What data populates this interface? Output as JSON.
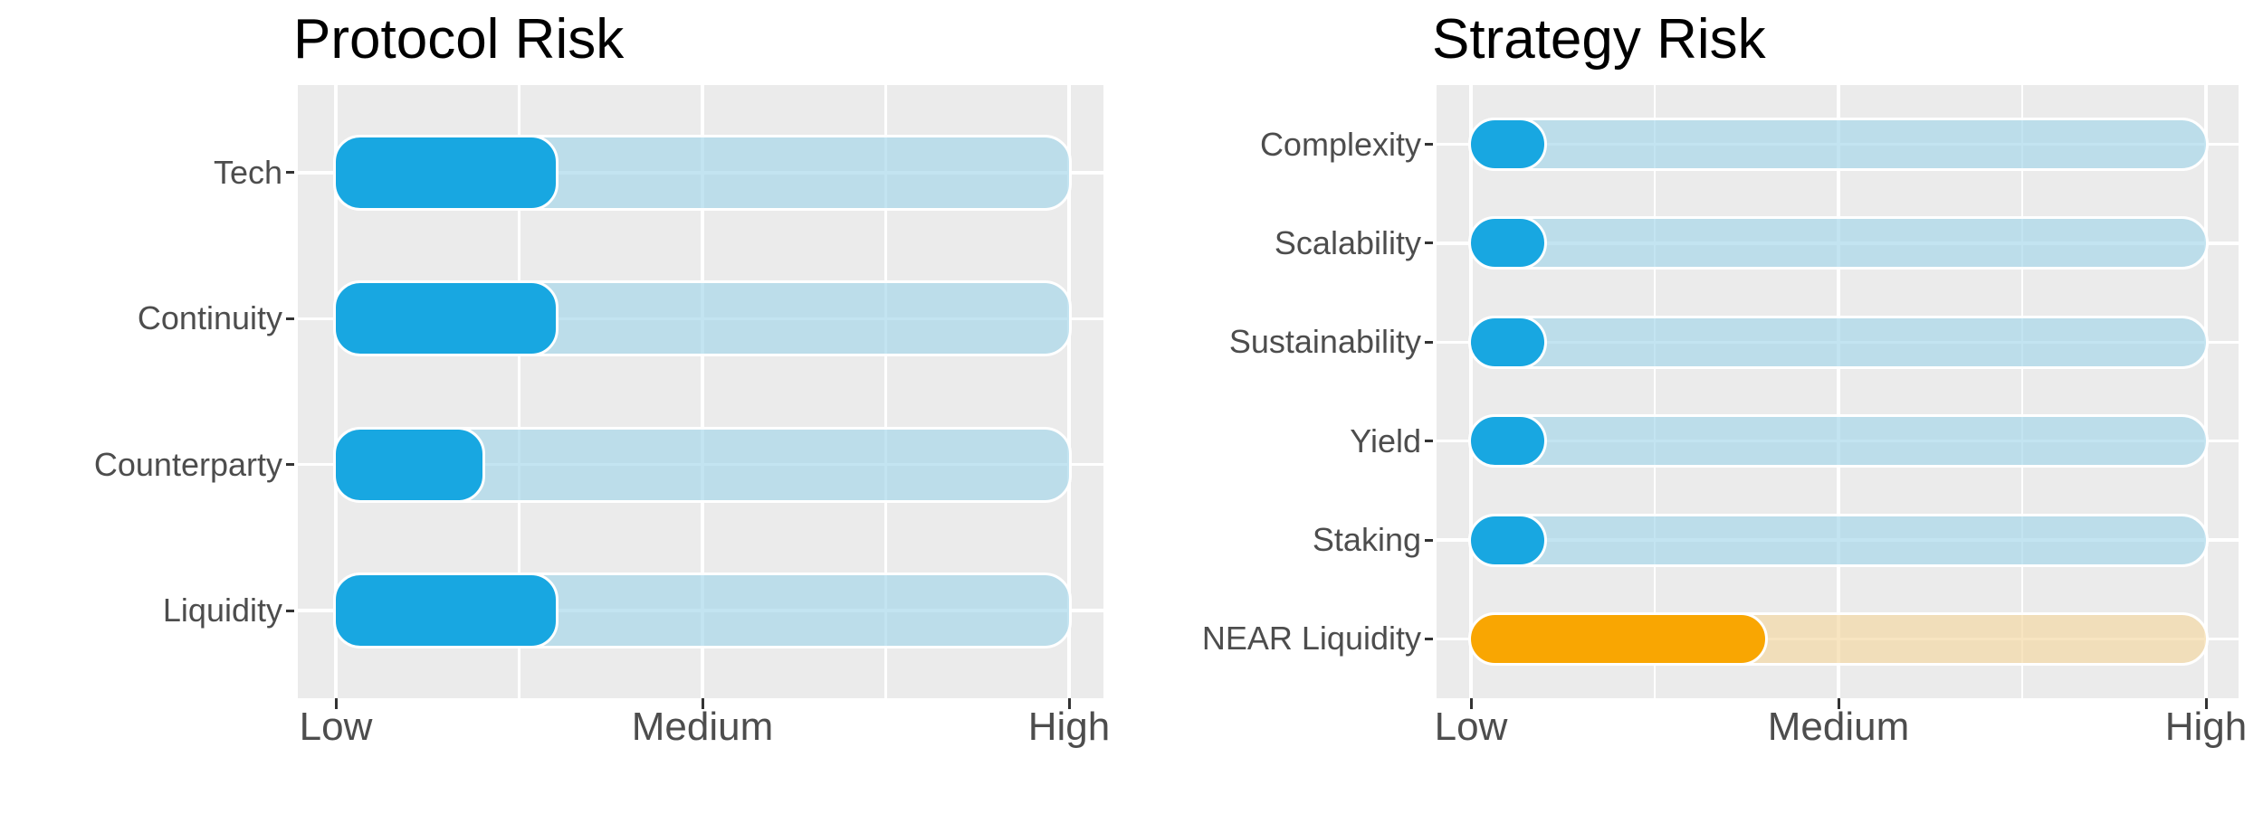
{
  "chart_data": [
    {
      "type": "bar",
      "orientation": "horizontal",
      "title": "Protocol Risk",
      "categories": [
        "Tech",
        "Continuity",
        "Counterparty",
        "Liquidity"
      ],
      "values": [
        3,
        3,
        2,
        3
      ],
      "track_max": 10,
      "xlim": [
        0,
        10
      ],
      "x_ticks": [
        {
          "label": "Low",
          "value": 0
        },
        {
          "label": "Medium",
          "value": 5
        },
        {
          "label": "High",
          "value": 10
        }
      ],
      "grid": true,
      "legend": false,
      "bar_colors": [
        "#18a7e1",
        "#18a7e1",
        "#18a7e1",
        "#18a7e1"
      ],
      "track_colors": [
        "rgba(163,214,233,0.65)",
        "rgba(163,214,233,0.65)",
        "rgba(163,214,233,0.65)",
        "rgba(163,214,233,0.65)"
      ]
    },
    {
      "type": "bar",
      "orientation": "horizontal",
      "title": "Strategy Risk",
      "categories": [
        "Complexity",
        "Scalability",
        "Sustainability",
        "Yield",
        "Staking",
        "NEAR Liquidity"
      ],
      "values": [
        1,
        1,
        1,
        1,
        1,
        4
      ],
      "track_max": 10,
      "xlim": [
        0,
        10
      ],
      "x_ticks": [
        {
          "label": "Low",
          "value": 0
        },
        {
          "label": "Medium",
          "value": 5
        },
        {
          "label": "High",
          "value": 10
        }
      ],
      "grid": true,
      "legend": false,
      "bar_colors": [
        "#18a7e1",
        "#18a7e1",
        "#18a7e1",
        "#18a7e1",
        "#18a7e1",
        "#f9a602"
      ],
      "track_colors": [
        "rgba(163,214,233,0.65)",
        "rgba(163,214,233,0.65)",
        "rgba(163,214,233,0.65)",
        "rgba(163,214,233,0.65)",
        "rgba(163,214,233,0.65)",
        "rgba(244,215,160,0.65)"
      ]
    }
  ],
  "styles": {
    "panel_background": "#ebebeb",
    "gridline_color": "#ffffff",
    "axis_text_color": "#4d4d4d",
    "tick_mark_color": "#333333",
    "title_color": "#000000",
    "accent_blue": "#18a7e1",
    "accent_orange": "#f9a602"
  }
}
